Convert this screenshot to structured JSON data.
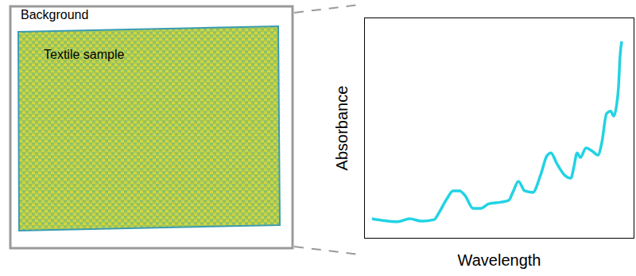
{
  "image": {
    "labels": [
      "Background",
      "Textile sample"
    ]
  },
  "chart_data": {
    "type": "line",
    "x_label": "Wavelength",
    "y_label": "Absorbance",
    "x": [
      2.9,
      6.5,
      12.4,
      16.8,
      21.2,
      25.9,
      27.6,
      30.6,
      32.9,
      35.3,
      37.4,
      40.3,
      43.2,
      46.2,
      50.6,
      53.5,
      55.0,
      57.1,
      59.4,
      62.4,
      65.3,
      67.6,
      69.1,
      71.2,
      74.1,
      76.5,
      77.6,
      78.8,
      80.0,
      82.1,
      84.4,
      86.5,
      87.9,
      89.7,
      91.2,
      92.4,
      93.5,
      94.1,
      94.7,
      95.3
    ],
    "values": [
      9.0,
      8.3,
      7.6,
      9.0,
      7.9,
      8.6,
      11.5,
      18.0,
      21.6,
      21.6,
      19.4,
      13.7,
      13.7,
      15.8,
      16.5,
      17.3,
      20.9,
      25.9,
      21.6,
      20.9,
      28.8,
      37.4,
      38.8,
      34.2,
      28.8,
      27.3,
      32.4,
      38.8,
      36.7,
      41.0,
      39.6,
      37.8,
      43.2,
      56.5,
      57.6,
      55.4,
      61.2,
      68.3,
      82.7,
      89.2
    ],
    "xlim": [
      0,
      100
    ],
    "ylim": [
      0,
      100
    ],
    "tick_labels": false,
    "color": "#22d3e3"
  }
}
